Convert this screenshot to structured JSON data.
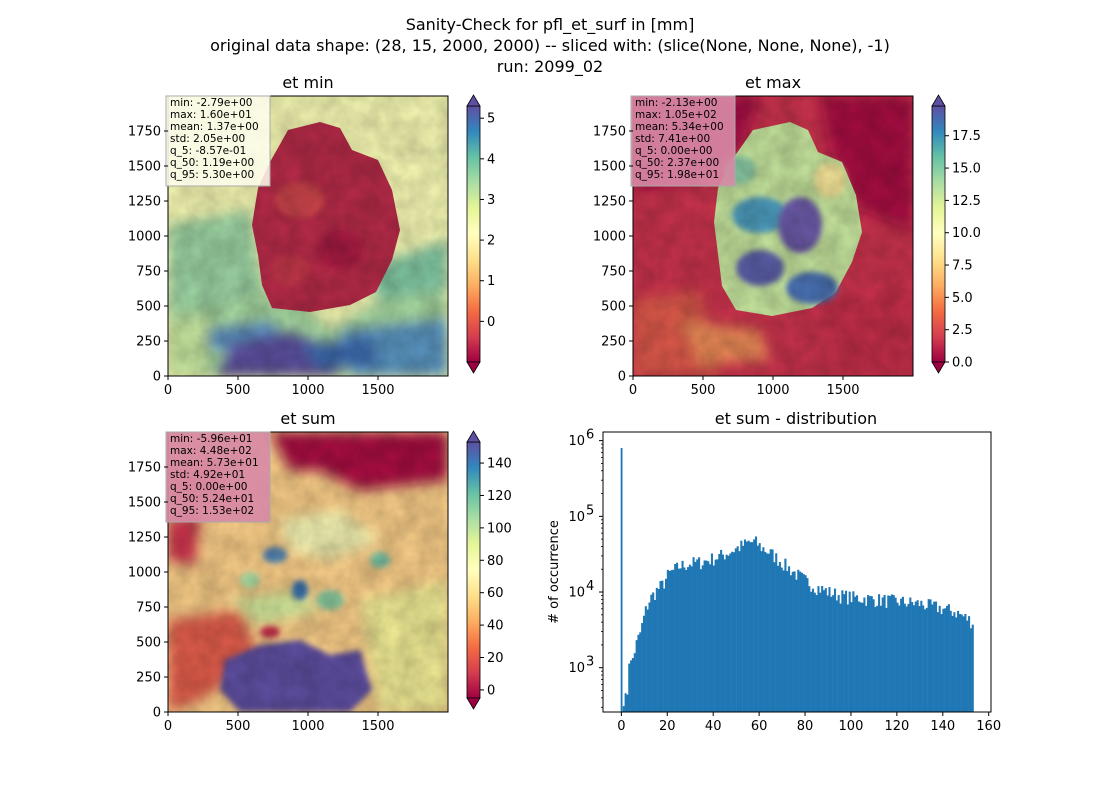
{
  "figure": {
    "suptitle": [
      "Sanity-Check for pfl_et_surf in [mm]",
      "original data shape: (28, 15, 2000, 2000) -- sliced with: (slice(None, None, None), -1)",
      "run: 2099_02"
    ]
  },
  "colormap": "Spectral",
  "chart_data": [
    {
      "type": "heatmap",
      "title": "et min",
      "xlim": [
        0,
        2000
      ],
      "ylim": [
        0,
        2000
      ],
      "x_ticks": [
        "0",
        "500",
        "1000",
        "1500"
      ],
      "y_ticks": [
        "0",
        "250",
        "500",
        "750",
        "1000",
        "1250",
        "1500",
        "1750"
      ],
      "colorbar": {
        "range": [
          -1,
          5.3
        ],
        "ticks": [
          "0",
          "1",
          "2",
          "3",
          "4",
          "5"
        ],
        "extend": "both"
      },
      "stats": [
        "min: -2.79e+00",
        "max: 1.60e+01",
        "mean: 1.37e+00",
        "std: 2.05e+00",
        "q_5: -8.57e-01",
        "q_50: 1.19e+00",
        "q_95: 5.30e+00"
      ],
      "stats_box_color": "#fffff0"
    },
    {
      "type": "heatmap",
      "title": "et max",
      "xlim": [
        0,
        2000
      ],
      "ylim": [
        0,
        2000
      ],
      "x_ticks": [
        "0",
        "500",
        "1000",
        "1500"
      ],
      "y_ticks": [
        "0",
        "250",
        "500",
        "750",
        "1000",
        "1250",
        "1500",
        "1750"
      ],
      "colorbar": {
        "range": [
          0,
          19.8
        ],
        "ticks": [
          "0.0",
          "2.5",
          "5.0",
          "7.5",
          "10.0",
          "12.5",
          "15.0",
          "17.5"
        ],
        "extend": "both"
      },
      "stats": [
        "min: -2.13e+00",
        "max: 1.05e+02",
        "mean: 5.34e+00",
        "std: 7.41e+00",
        "q_5: 0.00e+00",
        "q_50: 2.37e+00",
        "q_95: 1.98e+01"
      ],
      "stats_box_color": "#d88aa6"
    },
    {
      "type": "heatmap",
      "title": "et sum",
      "xlim": [
        0,
        2000
      ],
      "ylim": [
        0,
        2000
      ],
      "x_ticks": [
        "0",
        "500",
        "1000",
        "1500"
      ],
      "y_ticks": [
        "0",
        "250",
        "500",
        "750",
        "1000",
        "1250",
        "1500",
        "1750"
      ],
      "colorbar": {
        "range": [
          -5,
          153
        ],
        "ticks": [
          "0",
          "20",
          "40",
          "60",
          "80",
          "100",
          "120",
          "140"
        ],
        "extend": "both"
      },
      "stats": [
        "min: -5.96e+01",
        "max: 4.48e+02",
        "mean: 5.73e+01",
        "std: 4.92e+01",
        "q_5: 0.00e+00",
        "q_50: 5.24e+01",
        "q_95: 1.53e+02"
      ],
      "stats_box_color": "#d88aa6"
    },
    {
      "type": "bar",
      "title": "et sum - distribution",
      "ylabel": "# of occurrence",
      "xlabel": "",
      "yscale": "log",
      "xlim": [
        -8,
        161
      ],
      "ylim": [
        260,
        1300000
      ],
      "x_ticks": [
        0,
        20,
        40,
        60,
        80,
        100,
        120,
        140,
        160
      ],
      "y_ticks": [
        {
          "value": 1000,
          "label": "10^3"
        },
        {
          "value": 10000,
          "label": "10^4"
        },
        {
          "value": 100000,
          "label": "10^5"
        },
        {
          "value": 1000000,
          "label": "10^6"
        }
      ],
      "bar_color": "#1f77b4",
      "spike": {
        "x": 0,
        "value": 800000
      },
      "bins_range": [
        0,
        153
      ],
      "envelope": [
        [
          0.5,
          400
        ],
        [
          2,
          380
        ],
        [
          3,
          1300
        ],
        [
          4,
          1100
        ],
        [
          5,
          1500
        ],
        [
          6,
          2000
        ],
        [
          8,
          3000
        ],
        [
          10,
          5500
        ],
        [
          12,
          8000
        ],
        [
          15,
          10500
        ],
        [
          18,
          13000
        ],
        [
          20,
          17000
        ],
        [
          25,
          22000
        ],
        [
          30,
          24000
        ],
        [
          35,
          25000
        ],
        [
          40,
          28000
        ],
        [
          45,
          32000
        ],
        [
          50,
          38000
        ],
        [
          55,
          45000
        ],
        [
          58,
          46000
        ],
        [
          60,
          40000
        ],
        [
          65,
          32000
        ],
        [
          70,
          24000
        ],
        [
          75,
          18000
        ],
        [
          80,
          14000
        ],
        [
          85,
          11500
        ],
        [
          90,
          10000
        ],
        [
          95,
          9000
        ],
        [
          100,
          8500
        ],
        [
          110,
          8000
        ],
        [
          120,
          7500
        ],
        [
          130,
          7000
        ],
        [
          140,
          6000
        ],
        [
          145,
          5500
        ],
        [
          150,
          4500
        ],
        [
          153,
          4000
        ]
      ]
    }
  ]
}
